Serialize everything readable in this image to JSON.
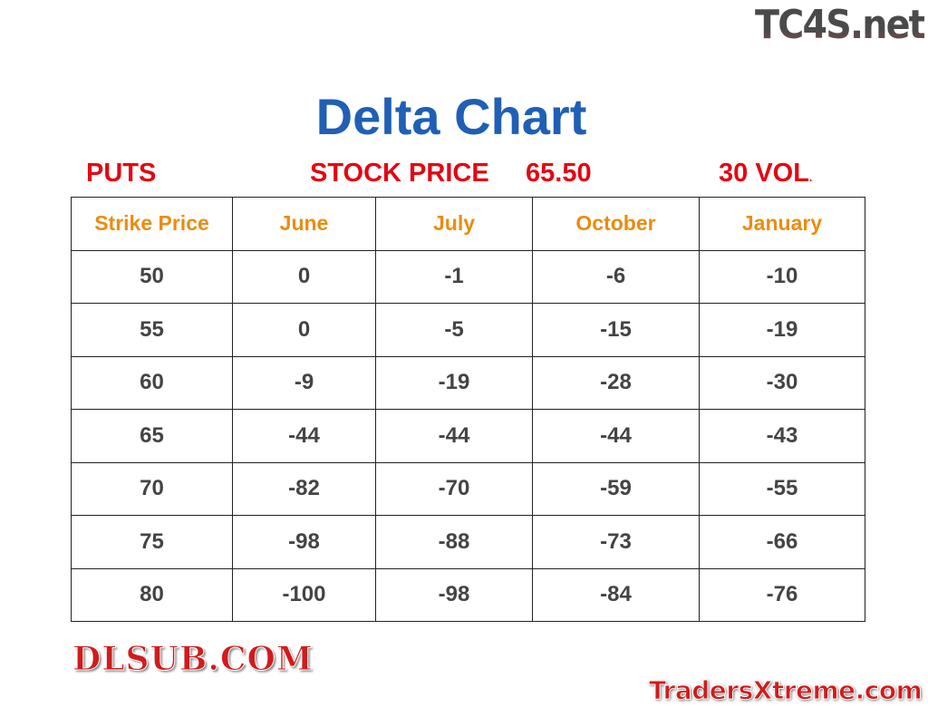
{
  "logos": {
    "top": "TC4S.net",
    "watermark": "DLSUB.COM",
    "bottom": "TradersXtreme.com"
  },
  "title": "Delta Chart",
  "subtitle": {
    "type": "PUTS",
    "stock_price_label": "STOCK PRICE",
    "stock_price": "65.50",
    "volatility": "30 VOL",
    "trailing": "."
  },
  "colors": {
    "title": "#1f5fb5",
    "subtitle": "#e30613",
    "header": "#ea8c10",
    "cell": "#444444"
  },
  "table": {
    "headers": [
      "Strike Price",
      "June",
      "July",
      "October",
      "January"
    ],
    "rows": [
      [
        "50",
        "0",
        "-1",
        "-6",
        "-10"
      ],
      [
        "55",
        "0",
        "-5",
        "-15",
        "-19"
      ],
      [
        "60",
        "-9",
        "-19",
        "-28",
        "-30"
      ],
      [
        "65",
        "-44",
        "-44",
        "-44",
        "-43"
      ],
      [
        "70",
        "-82",
        "-70",
        "-59",
        "-55"
      ],
      [
        "75",
        "-98",
        "-88",
        "-73",
        "-66"
      ],
      [
        "80",
        "-100",
        "-98",
        "-84",
        "-76"
      ]
    ]
  }
}
